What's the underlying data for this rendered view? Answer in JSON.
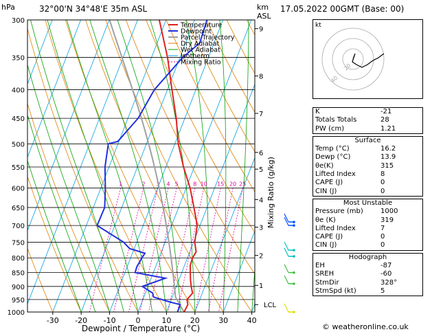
{
  "header": {
    "location": "32°00'N 34°48'E 35m ASL",
    "datetime": "17.05.2022 00GMT (Base: 00)",
    "hpa_label": "hPa",
    "km_label": "km",
    "asl_label": "ASL",
    "copyright": "© weatheronline.co.uk"
  },
  "legend": [
    "Temperature",
    "Dewpoint",
    "Parcel Trajectory",
    "Dry Adiabat",
    "Wet Adiabat",
    "Isotherm",
    "Mixing Ratio"
  ],
  "colors": {
    "temperature": "#e02020",
    "dewpoint": "#2030e0",
    "parcel": "#a0a0a0",
    "dry_adiabat": "#e08000",
    "wet_adiabat": "#00a000",
    "isotherm": "#00a0e0",
    "mixing_ratio": "#e000a0"
  },
  "chart_data": {
    "type": "line",
    "xlabel": "Dewpoint / Temperature (°C)",
    "ylabel": "",
    "x_ticks": [
      -30,
      -20,
      -10,
      0,
      10,
      20,
      30,
      40
    ],
    "pressure_levels": [
      300,
      350,
      400,
      450,
      500,
      550,
      600,
      650,
      700,
      750,
      800,
      850,
      900,
      950,
      1000
    ],
    "km_ticks": [
      "9",
      "8",
      "7",
      "6",
      "5",
      "4",
      "3",
      "2",
      "1",
      "LCL"
    ],
    "mixing_ratio_title": "Mixing Ratio (g/kg)",
    "mixing_ratio_labels": [
      "1",
      "2",
      "3",
      "4",
      "5",
      "8",
      "10",
      "15",
      "20",
      "25"
    ],
    "series": [
      {
        "name": "Temperature",
        "points": [
          [
            1000,
            16.2
          ],
          [
            970,
            16.5
          ],
          [
            950,
            15.5
          ],
          [
            925,
            16.6
          ],
          [
            900,
            15.2
          ],
          [
            875,
            14.0
          ],
          [
            850,
            13.0
          ],
          [
            825,
            12.0
          ],
          [
            800,
            11.8
          ],
          [
            780,
            12.2
          ],
          [
            750,
            10.4
          ],
          [
            700,
            9.0
          ],
          [
            650,
            5.4
          ],
          [
            600,
            1.4
          ],
          [
            550,
            -3.8
          ],
          [
            500,
            -8.8
          ],
          [
            450,
            -13.0
          ],
          [
            400,
            -18.4
          ],
          [
            350,
            -24.4
          ],
          [
            300,
            -32.4
          ]
        ]
      },
      {
        "name": "Dewpoint",
        "points": [
          [
            1000,
            13.9
          ],
          [
            970,
            13.8
          ],
          [
            960,
            10.0
          ],
          [
            940,
            3.4
          ],
          [
            925,
            2.6
          ],
          [
            900,
            -2.0
          ],
          [
            870,
            5.0
          ],
          [
            850,
            -6.4
          ],
          [
            830,
            -6.6
          ],
          [
            800,
            -6.0
          ],
          [
            785,
            -5.6
          ],
          [
            770,
            -11.6
          ],
          [
            750,
            -14.6
          ],
          [
            700,
            -26.2
          ],
          [
            650,
            -26.0
          ],
          [
            600,
            -28.4
          ],
          [
            550,
            -31.4
          ],
          [
            500,
            -33.4
          ],
          [
            495,
            -30.4
          ],
          [
            450,
            -26.4
          ],
          [
            400,
            -24.6
          ],
          [
            350,
            -19.0
          ],
          [
            330,
            -15.0
          ],
          [
            300,
            -15.6
          ]
        ]
      }
    ]
  },
  "indices": {
    "general": [
      {
        "label": "K",
        "value": "-21"
      },
      {
        "label": "Totals Totals",
        "value": "28"
      },
      {
        "label": "PW (cm)",
        "value": "1.21"
      }
    ],
    "surface": {
      "title": "Surface",
      "rows": [
        {
          "label": "Temp (°C)",
          "value": "16.2"
        },
        {
          "label": "Dewp (°C)",
          "value": "13.9"
        },
        {
          "label": "θe(K)",
          "value": "315"
        },
        {
          "label": "Lifted Index",
          "value": "8"
        },
        {
          "label": "CAPE (J)",
          "value": "0"
        },
        {
          "label": "CIN (J)",
          "value": "0"
        }
      ]
    },
    "unstable": {
      "title": "Most Unstable",
      "rows": [
        {
          "label": "Pressure (mb)",
          "value": "1000"
        },
        {
          "label": "θe (K)",
          "value": "319"
        },
        {
          "label": "Lifted Index",
          "value": "7"
        },
        {
          "label": "CAPE (J)",
          "value": "0"
        },
        {
          "label": "CIN (J)",
          "value": "0"
        }
      ]
    },
    "hodograph": {
      "title": "Hodograph",
      "rows": [
        {
          "label": "EH",
          "value": "-87"
        },
        {
          "label": "SREH",
          "value": "-60"
        },
        {
          "label": "StmDir",
          "value": "328°"
        },
        {
          "label": "StmSpd (kt)",
          "value": "5"
        }
      ]
    }
  },
  "hodo": {
    "unit_label": "kt",
    "ring_labels": [
      "20",
      "40"
    ]
  }
}
